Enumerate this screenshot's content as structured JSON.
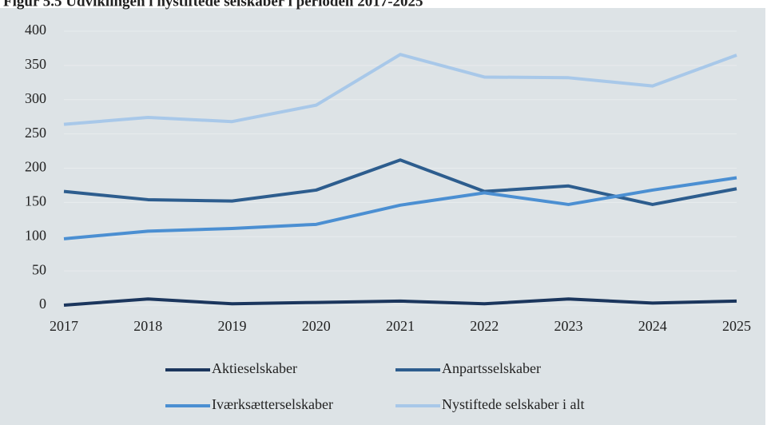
{
  "chart_data": {
    "type": "line",
    "title": "Figur 5.5 Udviklingen i nystiftede selskaber i perioden 2017-2025",
    "categories": [
      "2017",
      "2018",
      "2019",
      "2020",
      "2021",
      "2022",
      "2023",
      "2024",
      "2025"
    ],
    "series": [
      {
        "name": "Aktieselskaber",
        "color": "#1b365d",
        "values": [
          0,
          9,
          2,
          4,
          6,
          2,
          9,
          3,
          6
        ]
      },
      {
        "name": "Anpartsselskaber",
        "color": "#2d5d8e",
        "values": [
          166,
          154,
          152,
          168,
          212,
          166,
          174,
          147,
          170
        ]
      },
      {
        "name": "Iværksætterselskaber",
        "color": "#4b8fd2",
        "values": [
          97,
          108,
          112,
          118,
          146,
          164,
          147,
          168,
          186
        ]
      },
      {
        "name": "Nystiftede selskaber i alt",
        "color": "#a8c8e9",
        "values": [
          264,
          274,
          268,
          292,
          366,
          333,
          332,
          320,
          365
        ]
      }
    ],
    "ylim": [
      0,
      400
    ],
    "yticks": [
      0,
      50,
      100,
      150,
      200,
      250,
      300,
      350,
      400
    ],
    "grid": true
  }
}
